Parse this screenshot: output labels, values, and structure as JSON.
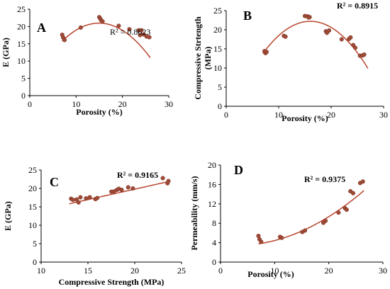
{
  "chart_data": [
    {
      "type": "scatter",
      "panel_label": "A",
      "xlabel": "Porosity (%)",
      "ylabel": "E (GPa)",
      "xlim": [
        0,
        30
      ],
      "ylim": [
        0,
        25
      ],
      "xticks": [
        0,
        10,
        20,
        30
      ],
      "yticks": [
        0,
        5,
        10,
        15,
        20,
        25
      ],
      "annotation": "R² = 0.8623",
      "annotation_bold": false,
      "trendline": {
        "type": "polynomial",
        "x_range": [
          7,
          26
        ],
        "coeffs": [
          2.57,
          2.46,
          -0.0822
        ]
      },
      "points": [
        {
          "x": 7.0,
          "y": 17.6
        },
        {
          "x": 7.2,
          "y": 16.8
        },
        {
          "x": 7.5,
          "y": 16.1
        },
        {
          "x": 11.0,
          "y": 19.7
        },
        {
          "x": 15.0,
          "y": 22.7
        },
        {
          "x": 15.2,
          "y": 22.3
        },
        {
          "x": 15.4,
          "y": 21.8
        },
        {
          "x": 15.7,
          "y": 21.5
        },
        {
          "x": 19.2,
          "y": 20.2
        },
        {
          "x": 21.5,
          "y": 19.2
        },
        {
          "x": 23.5,
          "y": 18.9
        },
        {
          "x": 24.1,
          "y": 18.9
        },
        {
          "x": 23.8,
          "y": 17.5
        },
        {
          "x": 24.6,
          "y": 17.7
        },
        {
          "x": 25.2,
          "y": 17.1
        },
        {
          "x": 25.8,
          "y": 16.9
        }
      ]
    },
    {
      "type": "scatter",
      "panel_label": "B",
      "xlabel": "Porosity (%)",
      "ylabel": "Compressive Strtength (MPa)",
      "xlim": [
        0,
        30
      ],
      "ylim": [
        0,
        25
      ],
      "xticks": [
        0,
        10,
        20,
        30
      ],
      "yticks": [
        0,
        5,
        10,
        15,
        20,
        25
      ],
      "annotation": "R² = 0.8915",
      "annotation_bold": true,
      "trendline": {
        "type": "polynomial",
        "x_range": [
          7,
          27
        ],
        "coeffs": [
          -4.19,
          3.29,
          -0.1025
        ]
      },
      "points": [
        {
          "x": 7.3,
          "y": 14.4
        },
        {
          "x": 7.5,
          "y": 13.9
        },
        {
          "x": 7.7,
          "y": 14.2
        },
        {
          "x": 11.0,
          "y": 18.4
        },
        {
          "x": 11.3,
          "y": 18.2
        },
        {
          "x": 15.0,
          "y": 23.6
        },
        {
          "x": 15.5,
          "y": 23.5
        },
        {
          "x": 15.9,
          "y": 23.3
        },
        {
          "x": 15.7,
          "y": 23.2
        },
        {
          "x": 19.0,
          "y": 19.6
        },
        {
          "x": 19.2,
          "y": 19.2
        },
        {
          "x": 19.6,
          "y": 19.8
        },
        {
          "x": 22.0,
          "y": 17.5
        },
        {
          "x": 23.4,
          "y": 17.6
        },
        {
          "x": 23.7,
          "y": 18.0
        },
        {
          "x": 24.2,
          "y": 16.0
        },
        {
          "x": 24.6,
          "y": 15.3
        },
        {
          "x": 25.5,
          "y": 13.2
        },
        {
          "x": 26.0,
          "y": 13.3
        },
        {
          "x": 26.3,
          "y": 13.5
        }
      ]
    },
    {
      "type": "scatter",
      "panel_label": "C",
      "xlabel": "Compressive Strength (MPa)",
      "ylabel": "E (GPa)",
      "xlim": [
        10,
        25
      ],
      "ylim": [
        0,
        25
      ],
      "xticks": [
        10,
        15,
        20,
        25
      ],
      "yticks": [
        0,
        5,
        10,
        15,
        20,
        25
      ],
      "annotation": "R² = 0.9165",
      "annotation_bold": true,
      "trendline": {
        "type": "linear",
        "x_range": [
          13,
          23.6
        ],
        "coeffs": [
          8.44,
          0.568
        ]
      },
      "points": [
        {
          "x": 13.2,
          "y": 17.2
        },
        {
          "x": 13.4,
          "y": 16.9
        },
        {
          "x": 13.8,
          "y": 17.0
        },
        {
          "x": 14.0,
          "y": 16.2
        },
        {
          "x": 14.2,
          "y": 17.6
        },
        {
          "x": 14.8,
          "y": 17.3
        },
        {
          "x": 15.2,
          "y": 17.6
        },
        {
          "x": 15.8,
          "y": 17.1
        },
        {
          "x": 16.0,
          "y": 17.4
        },
        {
          "x": 17.5,
          "y": 19.1
        },
        {
          "x": 17.8,
          "y": 19.2
        },
        {
          "x": 18.1,
          "y": 19.6
        },
        {
          "x": 18.3,
          "y": 19.9
        },
        {
          "x": 18.6,
          "y": 19.6
        },
        {
          "x": 19.3,
          "y": 20.3
        },
        {
          "x": 19.8,
          "y": 20.0
        },
        {
          "x": 23.0,
          "y": 22.8
        },
        {
          "x": 23.5,
          "y": 21.4
        },
        {
          "x": 23.6,
          "y": 22.0
        }
      ]
    },
    {
      "type": "scatter",
      "panel_label": "D",
      "xlabel": "Porosity (%)",
      "ylabel": "Permeability (mm/s)",
      "xlim": [
        0,
        30
      ],
      "ylim": [
        0,
        20
      ],
      "xticks": [
        0,
        10,
        20,
        30
      ],
      "yticks": [
        0,
        4,
        8,
        12,
        16,
        20
      ],
      "annotation": "R² = 0.9375",
      "annotation_bold": true,
      "trendline": {
        "type": "polynomial",
        "x_range": [
          7,
          26.5
        ],
        "coeffs": [
          3.6,
          -0.12,
          0.0204
        ]
      },
      "points": [
        {
          "x": 7.0,
          "y": 5.4
        },
        {
          "x": 7.2,
          "y": 4.7
        },
        {
          "x": 7.5,
          "y": 4.2
        },
        {
          "x": 11.0,
          "y": 5.2
        },
        {
          "x": 11.3,
          "y": 5.0
        },
        {
          "x": 15.1,
          "y": 6.2
        },
        {
          "x": 15.6,
          "y": 6.5
        },
        {
          "x": 19.0,
          "y": 8.1
        },
        {
          "x": 19.4,
          "y": 8.5
        },
        {
          "x": 21.8,
          "y": 10.2
        },
        {
          "x": 23.0,
          "y": 11.1
        },
        {
          "x": 23.3,
          "y": 10.8
        },
        {
          "x": 24.0,
          "y": 14.6
        },
        {
          "x": 24.5,
          "y": 14.2
        },
        {
          "x": 25.8,
          "y": 16.3
        },
        {
          "x": 26.3,
          "y": 16.6
        }
      ]
    }
  ],
  "colors": {
    "marker": "#9e4a36",
    "marker_edge": "#7a3322",
    "trendline": "#b8442c",
    "axis": "#000000"
  }
}
